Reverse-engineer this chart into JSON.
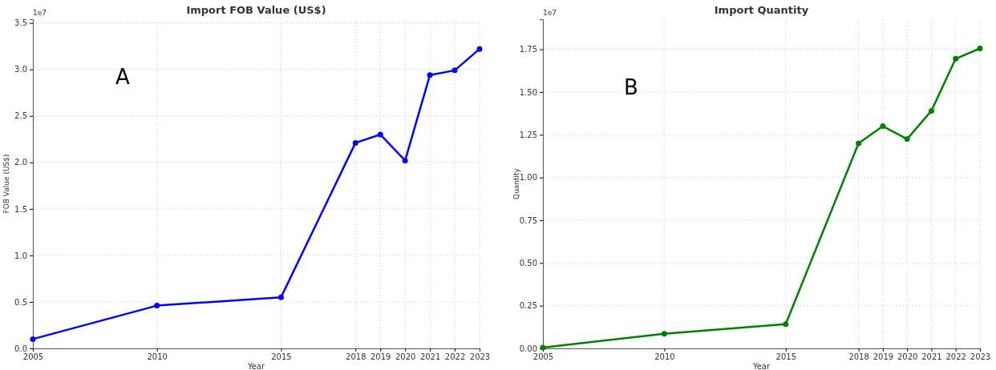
{
  "chart_data": [
    {
      "type": "line",
      "title": "Import FOB Value (US$)",
      "xlabel": "Year",
      "ylabel": "FOB Value (US$)",
      "annotations": [
        "1e7",
        "A"
      ],
      "x": [
        2005,
        2010,
        2015,
        2018,
        2019,
        2020,
        2021,
        2022,
        2023
      ],
      "series": [
        {
          "color": "#0000ff",
          "values": [
            0.1,
            0.46,
            0.55,
            2.21,
            2.3,
            2.02,
            2.94,
            2.99,
            3.22
          ]
        }
      ],
      "xlim": [
        2005,
        2023
      ],
      "xticks": [
        2005,
        2010,
        2015,
        2018,
        2019,
        2020,
        2021,
        2022,
        2023
      ],
      "ylim": [
        0,
        3.54
      ],
      "yticks": [
        {
          "value": 0,
          "label": "0.0"
        },
        0.5,
        {
          "value": 1,
          "label": "1.0"
        },
        1.5,
        {
          "value": 2,
          "label": "2.0"
        },
        2.5,
        {
          "value": 3,
          "label": "3.0"
        },
        3.5
      ],
      "grid": true,
      "marker": "circle",
      "line_style": "solid"
    },
    {
      "type": "line",
      "title": "Import Quantity",
      "xlabel": "Year",
      "ylabel": "Quantity",
      "annotations": [
        "1e7",
        "B"
      ],
      "x": [
        2005,
        2010,
        2015,
        2018,
        2019,
        2020,
        2021,
        2022,
        2023
      ],
      "series": [
        {
          "color": "#008000",
          "values": [
            0.005,
            0.086,
            0.142,
            1.2,
            1.3,
            1.225,
            1.39,
            1.695,
            1.755
          ]
        }
      ],
      "xlim": [
        2005,
        2023
      ],
      "xticks": [
        2005,
        2010,
        2015,
        2018,
        2019,
        2020,
        2021,
        2022,
        2023
      ],
      "ylim": [
        0,
        1.926
      ],
      "yticks": [
        {
          "value": 0,
          "label": "0.00"
        },
        0.25,
        {
          "value": 0.5,
          "label": "0.50"
        },
        0.75,
        {
          "value": 1,
          "label": "1.00"
        },
        1.25,
        {
          "value": 1.5,
          "label": "1.50"
        },
        1.75
      ],
      "grid": true,
      "marker": "circle",
      "line_style": "solid"
    }
  ]
}
